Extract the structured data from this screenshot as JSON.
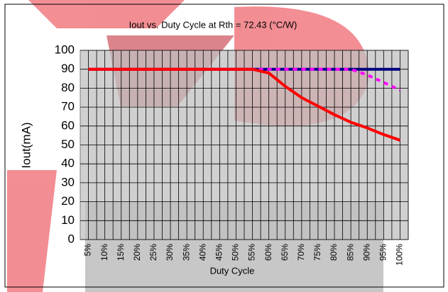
{
  "chart_data": {
    "type": "line",
    "title": "Iout vs. Duty Cycle at Rth = 72.43 (°C/W)",
    "x_label": "Duty Cycle",
    "y_label": "Iout(mA)",
    "categories": [
      "5%",
      "10%",
      "15%",
      "20%",
      "25%",
      "30%",
      "35%",
      "40%",
      "45%",
      "50%",
      "55%",
      "60%",
      "65%",
      "70%",
      "75%",
      "80%",
      "85%",
      "90%",
      "95%",
      "100%"
    ],
    "series": [
      {
        "color": "#000080",
        "values": [
          90,
          90,
          90,
          90,
          90,
          90,
          90,
          90,
          90,
          90,
          90,
          90,
          90,
          90,
          90,
          90,
          90,
          90,
          90,
          90
        ]
      },
      {
        "color": "#ff00ff",
        "dashed": true,
        "values": [
          90,
          90,
          90,
          90,
          90,
          90,
          90,
          90,
          90,
          90,
          90,
          90,
          90,
          90,
          90,
          90,
          90,
          87,
          83,
          79
        ]
      },
      {
        "color": "#ff0000",
        "values": [
          90,
          90,
          90,
          90,
          90,
          90,
          90,
          90,
          90,
          90,
          90,
          88,
          81,
          75,
          70.5,
          66,
          62,
          59,
          55.5,
          52.5
        ]
      }
    ],
    "ylim": [
      0,
      100
    ],
    "yticks": [
      0,
      10,
      20,
      30,
      40,
      50,
      60,
      70,
      80,
      90,
      100
    ],
    "grid": true
  }
}
